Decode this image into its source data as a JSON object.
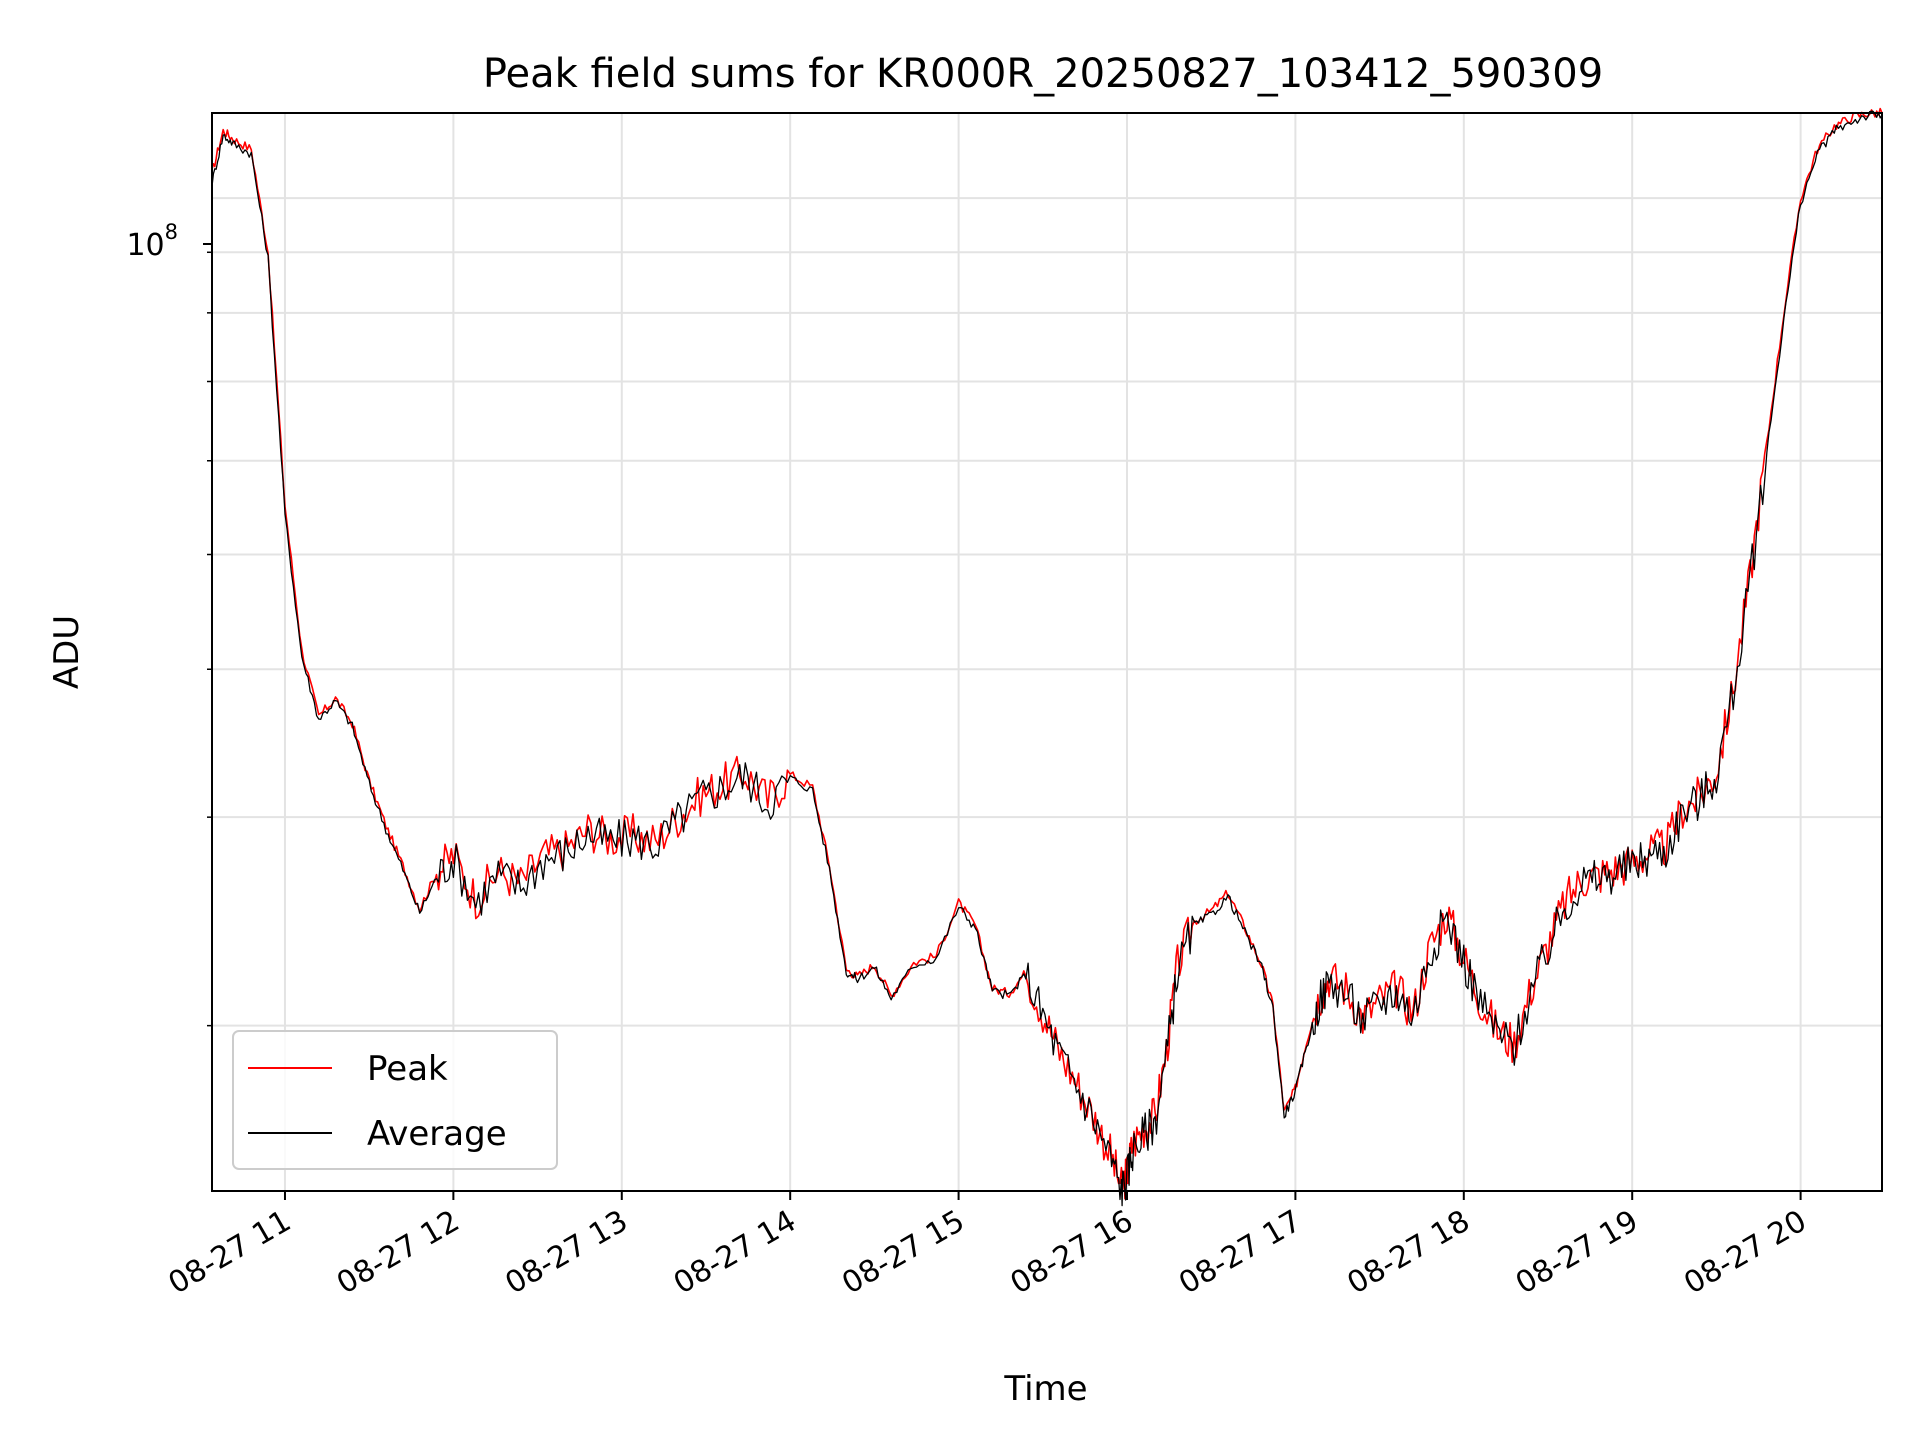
{
  "chart_data": {
    "type": "line",
    "title": "Peak field sums for KR000R_20250827_103412_590309",
    "xlabel": "Time",
    "ylabel": "ADU",
    "x_ticks": [
      "08-27 11",
      "08-27 12",
      "08-27 13",
      "08-27 14",
      "08-27 15",
      "08-27 16",
      "08-27 17",
      "08-27 18",
      "08-27 19",
      "08-27 20"
    ],
    "x_tick_hours": [
      11,
      12,
      13,
      14,
      15,
      16,
      17,
      18,
      19,
      20
    ],
    "y_tick_label_base": "10",
    "y_tick_label_exp": "8",
    "y_scale": "log",
    "xlim": [
      "08-27 10:34",
      "08-27 20:29"
    ],
    "ylim": [
      14500000,
      118000000
    ],
    "grid": true,
    "legend_placement": "lower-left",
    "x": [
      "10:34",
      "10:38",
      "10:42",
      "10:48",
      "10:54",
      "11:00",
      "11:06",
      "11:12",
      "11:18",
      "11:24",
      "11:30",
      "11:36",
      "11:42",
      "11:48",
      "11:54",
      "12:00",
      "12:08",
      "12:16",
      "12:24",
      "12:32",
      "12:40",
      "12:48",
      "12:56",
      "13:04",
      "13:12",
      "13:20",
      "13:28",
      "13:36",
      "13:44",
      "13:52",
      "14:00",
      "14:08",
      "14:14",
      "14:20",
      "14:24",
      "14:30",
      "14:36",
      "14:44",
      "14:52",
      "15:00",
      "15:06",
      "15:12",
      "15:18",
      "15:24",
      "15:30",
      "15:36",
      "15:42",
      "15:48",
      "15:54",
      "15:58",
      "16:00",
      "16:02",
      "16:06",
      "16:10",
      "16:14",
      "16:18",
      "16:24",
      "16:30",
      "16:36",
      "16:42",
      "16:48",
      "16:52",
      "16:56",
      "17:00",
      "17:04",
      "17:08",
      "17:12",
      "17:18",
      "17:24",
      "17:30",
      "17:36",
      "17:42",
      "17:48",
      "17:54",
      "18:00",
      "18:06",
      "18:12",
      "18:18",
      "18:24",
      "18:30",
      "18:36",
      "18:42",
      "18:48",
      "18:54",
      "19:00",
      "19:06",
      "19:12",
      "19:18",
      "19:24",
      "19:30",
      "19:36",
      "19:42",
      "19:48",
      "19:54",
      "20:00",
      "20:06",
      "20:12",
      "20:18",
      "20:24",
      "20:29"
    ],
    "series": [
      {
        "name": "Peak",
        "color": "#ff0000",
        "values": [
          105000000,
          114000000,
          112000000,
          110000000,
          90000000,
          55000000,
          41500000,
          36500000,
          37800000,
          36000000,
          32200000,
          29500000,
          27300000,
          25100000,
          26900000,
          27900000,
          25600000,
          27000000,
          26400000,
          27800000,
          28200000,
          29300000,
          28800000,
          29000000,
          28600000,
          30000000,
          31300000,
          32000000,
          32700000,
          31000000,
          32600000,
          31800000,
          27300000,
          22300000,
          22000000,
          22500000,
          21200000,
          22600000,
          22900000,
          25400000,
          24300000,
          21500000,
          21300000,
          22200000,
          20500000,
          19000000,
          17900000,
          16800000,
          15600000,
          14600000,
          15000000,
          15900000,
          16400000,
          16800000,
          19000000,
          22500000,
          24500000,
          25000000,
          25900000,
          24200000,
          22500000,
          20800000,
          16900000,
          17700000,
          19400000,
          21000000,
          22000000,
          21500000,
          20300000,
          21000000,
          21500000,
          20500000,
          23300000,
          24900000,
          22800000,
          21000000,
          19800000,
          19300000,
          21500000,
          23400000,
          25400000,
          26600000,
          26800000,
          27100000,
          27500000,
          28000000,
          28300000,
          30500000,
          31200000,
          32800000,
          38500000,
          48000000,
          62000000,
          80000000,
          100000000,
          110000000,
          115000000,
          117000000,
          118000000,
          118000000
        ]
      },
      {
        "name": "Average",
        "color": "#000000",
        "values": [
          103000000,
          113000000,
          111000000,
          109000000,
          89000000,
          54000000,
          41000000,
          36300000,
          37600000,
          35800000,
          32000000,
          29300000,
          27100000,
          24900000,
          26700000,
          27700000,
          25400000,
          26800000,
          26200000,
          27600000,
          28000000,
          29000000,
          28600000,
          28800000,
          28400000,
          29800000,
          31100000,
          31800000,
          32500000,
          30800000,
          32400000,
          31600000,
          27100000,
          22200000,
          21900000,
          22400000,
          21100000,
          22500000,
          22800000,
          25200000,
          24200000,
          21400000,
          21200000,
          22100000,
          20400000,
          18900000,
          17800000,
          16700000,
          15500000,
          14550000,
          14900000,
          15700000,
          16200000,
          16600000,
          18800000,
          22300000,
          24300000,
          24800000,
          25700000,
          24000000,
          22400000,
          20700000,
          16800000,
          17600000,
          19200000,
          20800000,
          21800000,
          21300000,
          20200000,
          20900000,
          21400000,
          20400000,
          23100000,
          24700000,
          22700000,
          20900000,
          19700000,
          19200000,
          21300000,
          23200000,
          25200000,
          26400000,
          26600000,
          26900000,
          27300000,
          27800000,
          28100000,
          30300000,
          31000000,
          32600000,
          38200000,
          47500000,
          61000000,
          79000000,
          99000000,
          109000000,
          114000000,
          116000000,
          117500000,
          117500000
        ]
      }
    ]
  }
}
